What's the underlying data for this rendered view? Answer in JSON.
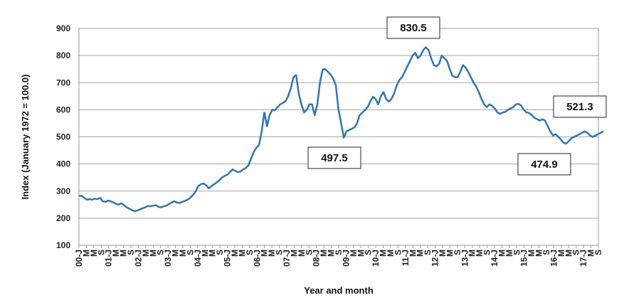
{
  "chart_data": {
    "type": "line",
    "title": "",
    "xlabel": "Year and month",
    "ylabel": "Index (January 1972 = 100.0)",
    "ylim": [
      100,
      900
    ],
    "yticks": [
      100,
      200,
      300,
      400,
      500,
      600,
      700,
      800,
      900
    ],
    "xticks": [
      "00-J",
      "M",
      "M",
      "S",
      "01-J",
      "M",
      "M",
      "S",
      "02-J",
      "M",
      "M",
      "S",
      "03-J",
      "M",
      "M",
      "S",
      "04-J",
      "M",
      "M",
      "S",
      "05-J",
      "M",
      "M",
      "S",
      "06-J",
      "M",
      "M",
      "S",
      "07-J",
      "M",
      "M",
      "S",
      "08-J",
      "M",
      "M",
      "S",
      "09-J",
      "M",
      "M",
      "S",
      "10-J",
      "M",
      "M",
      "S",
      "11-J",
      "M",
      "M",
      "S",
      "12-J",
      "M",
      "M",
      "S",
      "13-J",
      "M",
      "M",
      "S",
      "14-J",
      "M",
      "M",
      "S",
      "15-J",
      "M",
      "M",
      "S",
      "16-J",
      "M",
      "M",
      "S",
      "17-J",
      "M",
      "S"
    ],
    "grid": true,
    "line_color": "#2F75B5",
    "x_start": "2000-01",
    "x_end": "2017-09",
    "series": [
      {
        "values": [
          282,
          283,
          275,
          268,
          270,
          268,
          272,
          270,
          275,
          262,
          260,
          265,
          262,
          258,
          253,
          250,
          255,
          248,
          240,
          235,
          230,
          226,
          228,
          232,
          236,
          240,
          245,
          244,
          246,
          248,
          242,
          240,
          244,
          246,
          252,
          258,
          262,
          258,
          256,
          260,
          264,
          268,
          275,
          285,
          298,
          318,
          325,
          328,
          322,
          310,
          318,
          325,
          332,
          340,
          350,
          356,
          360,
          370,
          380,
          375,
          370,
          372,
          380,
          385,
          395,
          420,
          445,
          460,
          470,
          520,
          590,
          540,
          580,
          600,
          598,
          610,
          620,
          625,
          632,
          650,
          680,
          720,
          728,
          660,
          620,
          590,
          600,
          620,
          620,
          580,
          620,
          700,
          748,
          750,
          740,
          730,
          715,
          690,
          600,
          550,
          497.5,
          520,
          525,
          530,
          535,
          550,
          580,
          590,
          598,
          610,
          630,
          648,
          640,
          620,
          650,
          665,
          640,
          630,
          640,
          660,
          690,
          710,
          720,
          740,
          760,
          780,
          800,
          810,
          790,
          800,
          820,
          830.5,
          820,
          790,
          765,
          760,
          770,
          800,
          790,
          780,
          750,
          725,
          720,
          720,
          740,
          765,
          755,
          740,
          720,
          700,
          685,
          665,
          640,
          620,
          610,
          620,
          615,
          605,
          590,
          585,
          590,
          592,
          600,
          605,
          610,
          620,
          622,
          615,
          600,
          590,
          588,
          580,
          570,
          565,
          560,
          565,
          560,
          540,
          520,
          505,
          510,
          500,
          490,
          478,
          474.9,
          485,
          495,
          500,
          505,
          510,
          515,
          520,
          515,
          505,
          500,
          505,
          510,
          515,
          521.3
        ]
      }
    ],
    "annotations": [
      {
        "label": "830.5",
        "x": "2011-08",
        "value": 830.5
      },
      {
        "label": "497.5",
        "x": "2009-03",
        "value": 497.5
      },
      {
        "label": "474.9",
        "x": "2016-02",
        "value": 474.9
      },
      {
        "label": "521.3",
        "x": "2017-08",
        "value": 521.3
      }
    ]
  }
}
